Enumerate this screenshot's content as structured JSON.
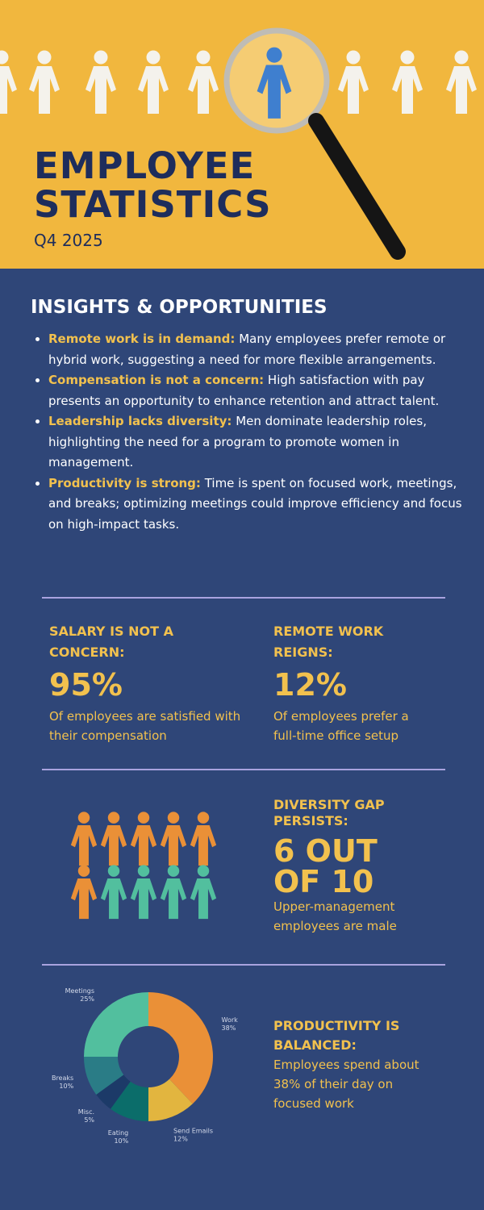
{
  "header": {
    "title": [
      "EMPLOYEE",
      "STATISTICS"
    ],
    "subtitle": "Q4 2025"
  },
  "insights": {
    "heading": "INSIGHTS & OPPORTUNITIES",
    "items": [
      {
        "lead": "Remote work is in demand:",
        "text": "Many employees prefer remote or hybrid work, suggesting a need for more flexible arrangements."
      },
      {
        "lead": "Compensation is not a concern:",
        "text": "High satisfaction with pay presents an opportunity to enhance retention and attract talent."
      },
      {
        "lead": "Leadership lacks diversity:",
        "text": "Men dominate leadership roles, highlighting the need for a program to promote women in management."
      },
      {
        "lead": "Productivity is strong:",
        "text": "Time is spent on focused work, meetings, and breaks; optimizing meetings could improve efficiency and focus on high-impact tasks."
      }
    ]
  },
  "stats": [
    {
      "heading": "SALARY IS NOT A CONCERN:",
      "figure": "95%",
      "text": "Of employees are satisfied with their compensation"
    },
    {
      "heading": "REMOTE WORK REIGNS:",
      "figure": "12%",
      "text": "Of employees prefer a full-time office setup"
    }
  ],
  "diversity": {
    "heading": "DIVERSITY GAP PERSISTS:",
    "figure": "6 OUT OF 10",
    "text": "Upper-management employees are male"
  },
  "productivity": {
    "heading": "PRODUCTIVITY IS BALANCED:",
    "text": "Employees spend about 38% of their day on focused work"
  },
  "chart_data": {
    "type": "pie",
    "donut": true,
    "categories": [
      "Work",
      "Send Emails",
      "Eating",
      "Misc.",
      "Breaks",
      "Meetings"
    ],
    "values": [
      38,
      12,
      10,
      5,
      10,
      25
    ],
    "value_labels": [
      "38%",
      "12%",
      "10%",
      "5%",
      "10%",
      "25%"
    ],
    "colors": [
      "#ea9037",
      "#e2b53f",
      "#0b6d6a",
      "#1c3a68",
      "#2a7c86",
      "#52bf9e"
    ]
  }
}
